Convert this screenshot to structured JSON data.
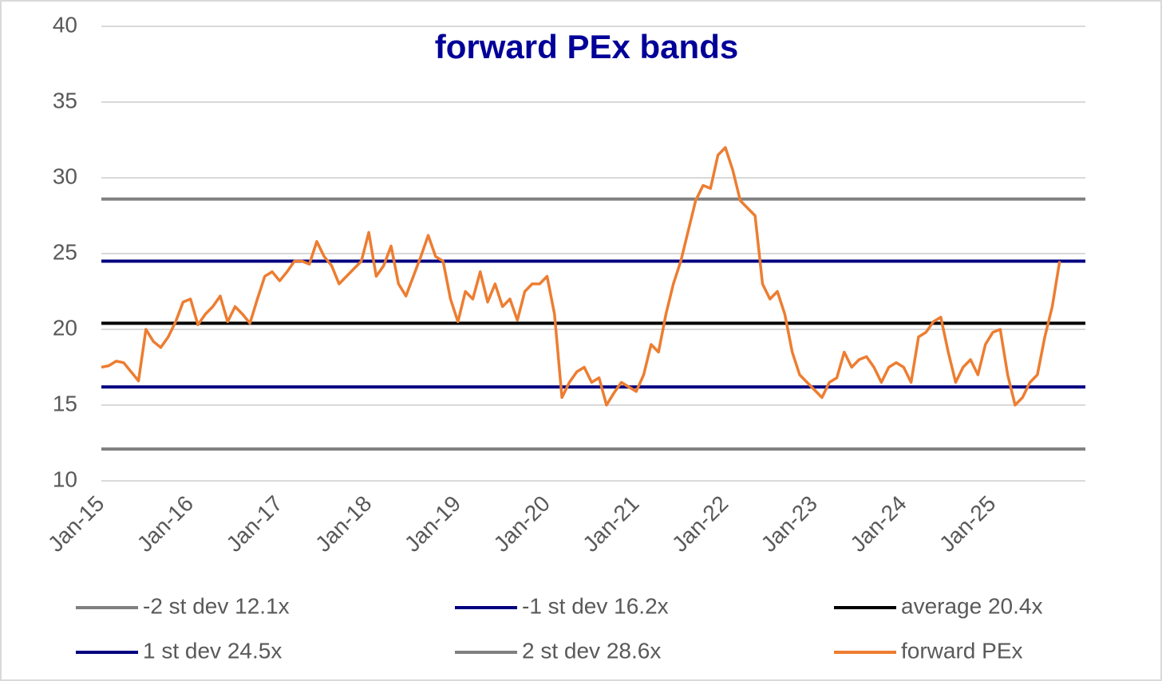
{
  "chart_data": {
    "type": "line",
    "title": "forward PEx bands",
    "categories": [
      "Jan-15",
      null,
      null,
      null,
      null,
      null,
      null,
      null,
      null,
      null,
      null,
      null,
      "Jan-16",
      null,
      null,
      null,
      null,
      null,
      null,
      null,
      null,
      null,
      null,
      null,
      "Jan-17",
      null,
      null,
      null,
      null,
      null,
      null,
      null,
      null,
      null,
      null,
      null,
      "Jan-18",
      null,
      null,
      null,
      null,
      null,
      null,
      null,
      null,
      null,
      null,
      null,
      "Jan-19",
      null,
      null,
      null,
      null,
      null,
      null,
      null,
      null,
      null,
      null,
      null,
      "Jan-20",
      null,
      null,
      null,
      null,
      null,
      null,
      null,
      null,
      null,
      null,
      null,
      "Jan-21",
      null,
      null,
      null,
      null,
      null,
      null,
      null,
      null,
      null,
      null,
      null,
      "Jan-22",
      null,
      null,
      null,
      null,
      null,
      null,
      null,
      null,
      null,
      null,
      null,
      "Jan-23",
      null,
      null,
      null,
      null,
      null,
      null,
      null,
      null,
      null,
      null,
      null,
      "Jan-24",
      null,
      null,
      null,
      null,
      null,
      null,
      null,
      null,
      null,
      null,
      null,
      "Jan-25",
      null,
      null,
      null,
      null,
      null,
      null,
      null,
      null,
      null
    ],
    "bands": [
      {
        "name": "-2 st dev 12.1x",
        "value": 12.1,
        "color": "#808080"
      },
      {
        "name": "-1 st dev 16.2x",
        "value": 16.2,
        "color": "#000080"
      },
      {
        "name": "average 20.4x",
        "value": 20.4,
        "color": "#000000"
      },
      {
        "name": "1 st dev 24.5x",
        "value": 24.5,
        "color": "#000080"
      },
      {
        "name": "2 st dev 28.6x",
        "value": 28.6,
        "color": "#808080"
      }
    ],
    "series": [
      {
        "name": "forward PEx",
        "color": "#ed7d31",
        "values": [
          17.5,
          17.6,
          17.9,
          17.8,
          17.2,
          16.6,
          20.0,
          19.2,
          18.8,
          19.5,
          20.5,
          21.8,
          22.0,
          20.3,
          21.0,
          21.5,
          22.2,
          20.5,
          21.5,
          21.0,
          20.4,
          22.0,
          23.5,
          23.8,
          23.2,
          23.8,
          24.5,
          24.5,
          24.3,
          25.8,
          24.8,
          24.2,
          23.0,
          23.5,
          24.0,
          24.5,
          26.4,
          23.5,
          24.2,
          25.5,
          23.0,
          22.2,
          23.5,
          24.8,
          26.2,
          24.8,
          24.5,
          22.0,
          20.5,
          22.5,
          22.0,
          23.8,
          21.8,
          23.0,
          21.5,
          22.0,
          20.6,
          22.5,
          23.0,
          23.0,
          23.5,
          21.0,
          15.5,
          16.5,
          17.2,
          17.5,
          16.5,
          16.8,
          15.0,
          15.8,
          16.5,
          16.2,
          15.9,
          17.0,
          19.0,
          18.5,
          21.0,
          23.0,
          24.5,
          26.5,
          28.5,
          29.5,
          29.3,
          31.5,
          32.0,
          30.5,
          28.5,
          28.0,
          27.5,
          23.0,
          22.0,
          22.5,
          21.0,
          18.5,
          17.0,
          16.5,
          16.0,
          15.5,
          16.5,
          16.8,
          18.5,
          17.5,
          18.0,
          18.2,
          17.5,
          16.5,
          17.5,
          17.8,
          17.5,
          16.5,
          19.5,
          19.8,
          20.5,
          20.8,
          18.5,
          16.5,
          17.5,
          18.0,
          17.0,
          19.0,
          19.8,
          20.0,
          17.0,
          15.0,
          15.5,
          16.5,
          17.0,
          19.5,
          21.5,
          24.5
        ]
      }
    ],
    "ylim": [
      10,
      40
    ],
    "yticks": [
      10,
      15,
      20,
      25,
      30,
      35,
      40
    ],
    "grid": true
  }
}
